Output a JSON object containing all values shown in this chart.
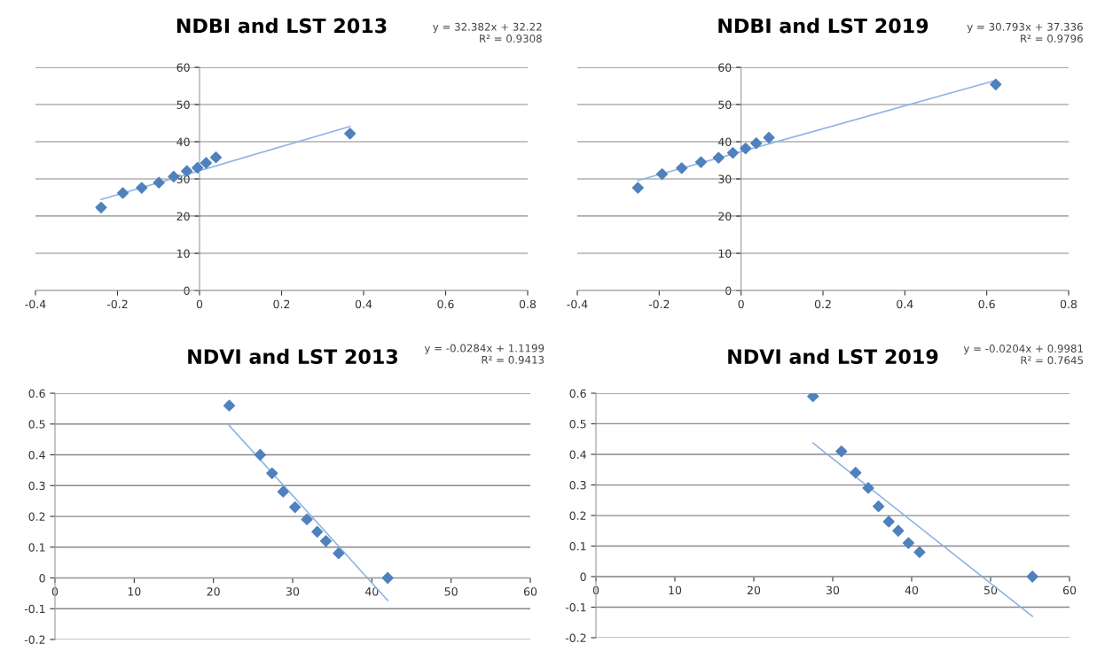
{
  "chart_data": [
    {
      "type": "scatter",
      "title": "NDBI and LST 2013",
      "annotations": [
        "y = 32.382x + 32.22\nR² = 0.9308"
      ],
      "marker": "diamond",
      "grid": "y",
      "legend": false,
      "xlim": [
        -0.4,
        0.8
      ],
      "xticks": [
        -0.4,
        -0.2,
        0,
        0.2,
        0.4,
        0.6,
        0.8
      ],
      "ylim": [
        0,
        60
      ],
      "yticks": [
        0,
        10,
        20,
        30,
        40,
        50,
        60
      ],
      "series": [
        {
          "color": "#4f81bd",
          "x": [
            -0.24,
            -0.187,
            -0.141,
            -0.099,
            -0.063,
            -0.031,
            -0.005,
            0.016,
            0.04,
            0.367
          ],
          "values": [
            22.3,
            26.2,
            27.6,
            29.0,
            30.6,
            32.1,
            33.0,
            34.3,
            35.8,
            42.2
          ]
        },
        {
          "type": "line",
          "marker": "none",
          "color": "#8eb4e3",
          "x": [
            -0.24,
            0.367
          ],
          "values": [
            24.45,
            44.1
          ]
        }
      ]
    },
    {
      "type": "scatter",
      "title": "NDBI and LST 2019",
      "annotations": [
        "y = 30.793x + 37.336\nR² = 0.9796"
      ],
      "marker": "diamond",
      "grid": "y",
      "legend": false,
      "xlim": [
        -0.4,
        0.8
      ],
      "xticks": [
        -0.4,
        -0.2,
        0,
        0.2,
        0.4,
        0.6,
        0.8
      ],
      "ylim": [
        0,
        60
      ],
      "yticks": [
        0,
        10,
        20,
        30,
        40,
        50,
        60
      ],
      "series": [
        {
          "color": "#4f81bd",
          "x": [
            -0.252,
            -0.193,
            -0.145,
            -0.098,
            -0.055,
            -0.02,
            0.011,
            0.037,
            0.068,
            0.622
          ],
          "values": [
            27.6,
            31.3,
            32.9,
            34.5,
            35.7,
            37.0,
            38.2,
            39.6,
            41.1,
            55.4
          ]
        },
        {
          "type": "line",
          "marker": "none",
          "color": "#8eb4e3",
          "x": [
            -0.252,
            0.622
          ],
          "values": [
            29.58,
            56.49
          ]
        }
      ]
    },
    {
      "type": "scatter",
      "title": "NDVI and LST 2013",
      "annotations": [
        "y = -0.0284x + 1.1199\nR² = 0.9413"
      ],
      "marker": "diamond",
      "grid": "y",
      "legend": false,
      "xlim": [
        0,
        60
      ],
      "xticks": [
        0,
        10,
        20,
        30,
        40,
        50,
        60
      ],
      "ylim": [
        -0.2,
        0.6
      ],
      "yticks": [
        -0.2,
        -0.1,
        0,
        0.1,
        0.2,
        0.3,
        0.4,
        0.5,
        0.6
      ],
      "series": [
        {
          "color": "#4f81bd",
          "x": [
            22.0,
            25.9,
            27.4,
            28.8,
            30.3,
            31.8,
            33.1,
            34.2,
            35.8,
            42.0
          ],
          "values": [
            0.56,
            0.4,
            0.34,
            0.28,
            0.23,
            0.19,
            0.15,
            0.12,
            0.08,
            0.0
          ]
        },
        {
          "type": "line",
          "marker": "none",
          "color": "#8eb4e3",
          "x": [
            22.0,
            42.0
          ],
          "values": [
            0.495,
            -0.073
          ]
        }
      ]
    },
    {
      "type": "scatter",
      "title": "NDVI and LST 2019",
      "annotations": [
        "y = -0.0204x + 0.9981\nR² = 0.7645"
      ],
      "marker": "diamond",
      "grid": "y",
      "legend": false,
      "xlim": [
        0,
        60
      ],
      "xticks": [
        0,
        10,
        20,
        30,
        40,
        50,
        60
      ],
      "ylim": [
        -0.2,
        0.6
      ],
      "yticks": [
        -0.2,
        -0.1,
        0,
        0.1,
        0.2,
        0.3,
        0.4,
        0.5,
        0.6
      ],
      "series": [
        {
          "color": "#4f81bd",
          "x": [
            27.5,
            31.1,
            32.9,
            34.5,
            35.8,
            37.1,
            38.3,
            39.6,
            41.0,
            55.3
          ],
          "values": [
            0.59,
            0.41,
            0.34,
            0.29,
            0.23,
            0.18,
            0.15,
            0.11,
            0.08,
            0.0
          ]
        },
        {
          "type": "line",
          "marker": "none",
          "color": "#8eb4e3",
          "x": [
            27.5,
            55.3
          ],
          "values": [
            0.437,
            -0.13
          ]
        }
      ]
    }
  ]
}
